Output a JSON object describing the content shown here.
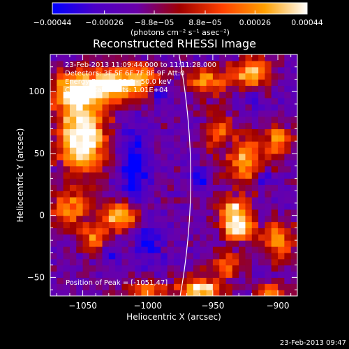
{
  "chart_data": {
    "type": "heatmap",
    "title": "Reconstructed RHESSI Image",
    "xlabel": "Heliocentric X (arcsec)",
    "ylabel": "Heliocentric Y (arcsec)",
    "xlim": [
      -1075,
      -885
    ],
    "ylim": [
      -65,
      130
    ],
    "x_ticks": [
      -1050,
      -1000,
      -950,
      -900
    ],
    "y_ticks": [
      -50,
      0,
      50,
      100
    ],
    "x_tick_labels": [
      "−1050",
      "−1000",
      "−950",
      "−900"
    ],
    "y_tick_labels": [
      "−50",
      "0",
      "50",
      "100"
    ],
    "colorbar": {
      "range": [
        -0.00044,
        0.00044
      ],
      "ticks": [
        -0.00044,
        -0.00026,
        -8.8e-05,
        8.8e-05,
        0.00026,
        0.00044
      ],
      "tick_labels": [
        "−0.00044",
        "−0.00026",
        "−8.8e−05",
        "8.8e−05",
        "0.00026",
        "0.00044"
      ],
      "unit_label": "(photons cm⁻² s⁻¹ asec⁻²)",
      "stops": [
        "#0000ff",
        "#4b00c8",
        "#6a00a8",
        "#a00000",
        "#ff4000",
        "#ffa000",
        "#ffffff"
      ]
    },
    "annotations": [
      "23-Feb-2013 11:09:44.000 to 11:11:28.000",
      "Detectors: 3F 5F 6F 7F 8F 9F  Att:0",
      "Energy Range: 25.0 - 50.0 keV",
      "Clean    Total counts: 1.01E+04"
    ],
    "peak_label": "Position of Peak = [-1051,47]",
    "limb_color": "#ffffff",
    "bright_regions": [
      {
        "x": -1050,
        "y": 62,
        "w": 18,
        "h": 28,
        "v": 1.0
      },
      {
        "x": -1058,
        "y": 100,
        "w": 16,
        "h": 16,
        "v": 0.85
      },
      {
        "x": -1030,
        "y": 105,
        "w": 18,
        "h": 14,
        "v": 0.9
      },
      {
        "x": -1005,
        "y": 110,
        "w": 16,
        "h": 12,
        "v": 0.65
      },
      {
        "x": -1020,
        "y": 0,
        "w": 16,
        "h": 12,
        "v": 0.75
      },
      {
        "x": -1060,
        "y": 5,
        "w": 14,
        "h": 14,
        "v": 0.6
      },
      {
        "x": -1040,
        "y": -20,
        "w": 12,
        "h": 10,
        "v": 0.55
      },
      {
        "x": -1000,
        "y": -60,
        "w": 18,
        "h": 8,
        "v": 0.5
      },
      {
        "x": -960,
        "y": -60,
        "w": 16,
        "h": 10,
        "v": 0.85
      },
      {
        "x": -955,
        "y": 108,
        "w": 14,
        "h": 12,
        "v": 0.6
      },
      {
        "x": -920,
        "y": 115,
        "w": 16,
        "h": 12,
        "v": 0.7
      },
      {
        "x": -945,
        "y": 65,
        "w": 10,
        "h": 18,
        "v": 0.55
      },
      {
        "x": -925,
        "y": 45,
        "w": 14,
        "h": 20,
        "v": 0.65
      },
      {
        "x": -900,
        "y": 60,
        "w": 10,
        "h": 14,
        "v": 0.6
      },
      {
        "x": -935,
        "y": 5,
        "w": 12,
        "h": 10,
        "v": 0.7
      },
      {
        "x": -930,
        "y": -10,
        "w": 12,
        "h": 10,
        "v": 0.9
      },
      {
        "x": -900,
        "y": -20,
        "w": 12,
        "h": 14,
        "v": 0.7
      },
      {
        "x": -940,
        "y": -40,
        "w": 12,
        "h": 10,
        "v": 0.55
      },
      {
        "x": -905,
        "y": -62,
        "w": 12,
        "h": 8,
        "v": 0.6
      }
    ],
    "dim_regions": [
      {
        "x": -1010,
        "y": 40,
        "w": 10,
        "h": 30,
        "v": -0.8
      },
      {
        "x": -1000,
        "y": -20,
        "w": 10,
        "h": 20,
        "v": -0.7
      },
      {
        "x": -1030,
        "y": -30,
        "w": 8,
        "h": 8,
        "v": -0.6
      },
      {
        "x": -940,
        "y": 55,
        "w": 8,
        "h": 8,
        "v": -0.7
      },
      {
        "x": -960,
        "y": 30,
        "w": 8,
        "h": 8,
        "v": -0.6
      },
      {
        "x": -920,
        "y": 95,
        "w": 6,
        "h": 6,
        "v": -0.6
      },
      {
        "x": -990,
        "y": 100,
        "w": 8,
        "h": 8,
        "v": -0.6
      },
      {
        "x": -910,
        "y": 30,
        "w": 6,
        "h": 6,
        "v": -0.6
      }
    ]
  },
  "footer": {
    "timestamp": "23-Feb-2013 09:47"
  }
}
